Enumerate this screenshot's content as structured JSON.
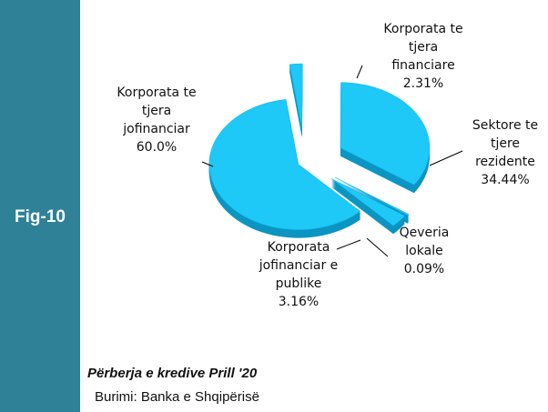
{
  "chart_data": {
    "type": "pie",
    "categories": [
      "Korporata te tjera financiare",
      "Sektore te tjere rezidente",
      "Qeveria lokale",
      "Korporata jofinanciar e publike",
      "Korporata te tjera jofinanciar"
    ],
    "values": [
      2.31,
      34.44,
      0.09,
      3.16,
      60.0
    ],
    "value_labels": [
      "2.31%",
      "34.44%",
      "0.09%",
      "3.16%",
      "60.0%"
    ],
    "color": "#1ec8f7",
    "figure": "Fig-10",
    "caption": "Përberja e kredive Prill '20",
    "source": "Burimi: Banka e Shqipërisë"
  }
}
